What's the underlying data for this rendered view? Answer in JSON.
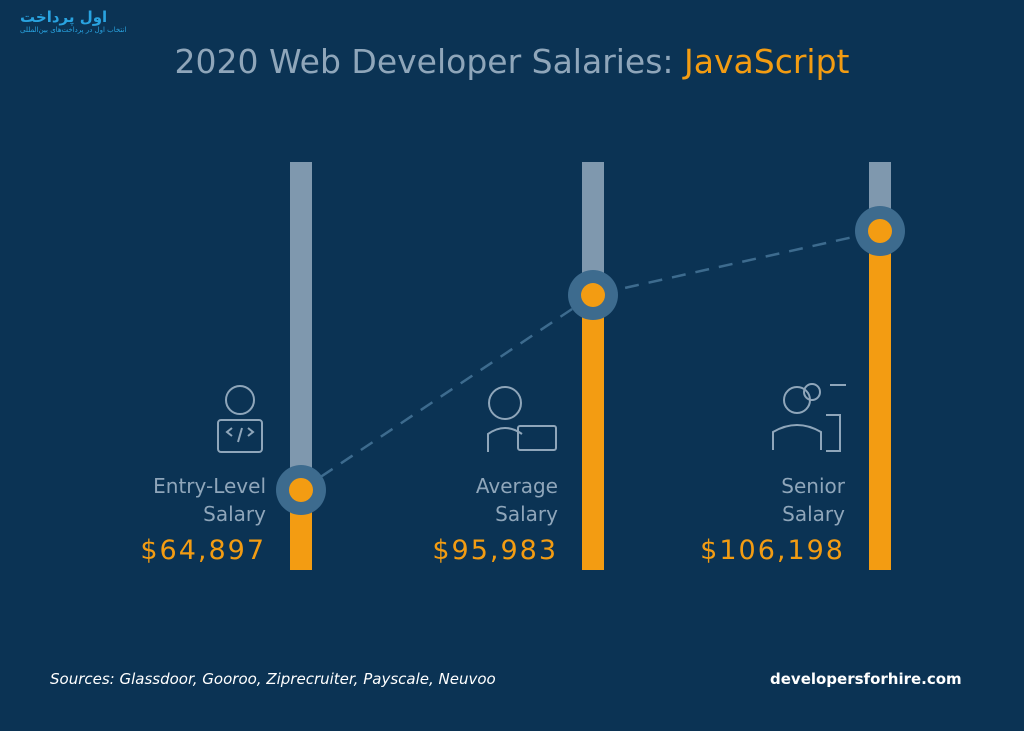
{
  "watermark": {
    "title": "اول پرداخت",
    "subtitle": "انتخاب اول در پرداخت‌های بین‌المللی"
  },
  "chart_data": {
    "type": "slider",
    "title": "2020 Web Developer Salaries: ",
    "title_highlight": "JavaScript",
    "categories": [
      "Entry-Level Salary",
      "Average Salary",
      "Senior Salary"
    ],
    "values": [
      64897,
      95983,
      106198
    ],
    "value_labels": [
      "$64,897",
      "$95,983",
      "$106,198"
    ],
    "color": "#f39c12",
    "track_color": "#7f98ae",
    "marker_ring_color": "#3d6b8e",
    "source": "Sources: Glassdoor, Gooroo, Ziprecruiter, Payscale, Neuvoo",
    "brand": "developersforhire.com"
  }
}
